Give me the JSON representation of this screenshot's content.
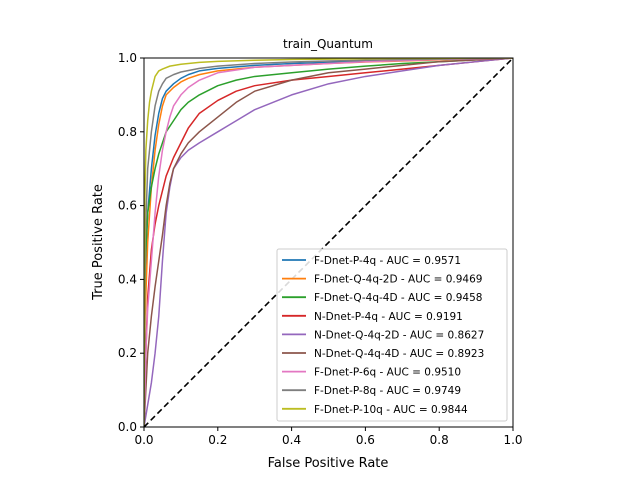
{
  "chart_data": {
    "type": "line",
    "title": "train_Quantum",
    "xlabel": "False Positive Rate",
    "ylabel": "True Positive Rate",
    "xlim": [
      0.0,
      1.0
    ],
    "ylim": [
      0.0,
      1.0
    ],
    "xticks": [
      "0.0",
      "0.2",
      "0.4",
      "0.6",
      "0.8",
      "1.0"
    ],
    "yticks": [
      "0.0",
      "0.2",
      "0.4",
      "0.6",
      "0.8",
      "1.0"
    ],
    "legend_position": "lower-right",
    "grid": false,
    "diagonal": {
      "color": "#000000",
      "style": "dashed",
      "x": [
        0,
        1
      ],
      "y": [
        0,
        1
      ]
    },
    "series": [
      {
        "name": "F-Dnet-P-4q - AUC = 0.9571",
        "color": "#1f77b4",
        "x": [
          0,
          0.003,
          0.01,
          0.02,
          0.03,
          0.04,
          0.05,
          0.06,
          0.08,
          0.1,
          0.12,
          0.15,
          0.2,
          0.3,
          0.4,
          0.5,
          0.6,
          0.7,
          0.8,
          0.9,
          1.0
        ],
        "y": [
          0,
          0.4,
          0.58,
          0.7,
          0.79,
          0.85,
          0.89,
          0.91,
          0.93,
          0.945,
          0.955,
          0.965,
          0.972,
          0.98,
          0.985,
          0.988,
          0.991,
          0.994,
          0.996,
          0.998,
          1.0
        ]
      },
      {
        "name": "F-Dnet-Q-4q-2D - AUC = 0.9469",
        "color": "#ff7f0e",
        "x": [
          0,
          0.003,
          0.01,
          0.02,
          0.03,
          0.04,
          0.05,
          0.06,
          0.08,
          0.1,
          0.12,
          0.15,
          0.2,
          0.3,
          0.4,
          0.5,
          0.6,
          0.7,
          0.8,
          0.9,
          1.0
        ],
        "y": [
          0,
          0.3,
          0.5,
          0.65,
          0.75,
          0.82,
          0.87,
          0.9,
          0.92,
          0.935,
          0.945,
          0.955,
          0.965,
          0.975,
          0.98,
          0.985,
          0.989,
          0.992,
          0.995,
          0.998,
          1.0
        ]
      },
      {
        "name": "F-Dnet-Q-4q-4D - AUC = 0.9458",
        "color": "#2ca02c",
        "x": [
          0,
          0.003,
          0.01,
          0.02,
          0.03,
          0.04,
          0.05,
          0.06,
          0.08,
          0.1,
          0.12,
          0.15,
          0.2,
          0.25,
          0.3,
          0.4,
          0.5,
          0.6,
          0.7,
          0.8,
          0.9,
          1.0
        ],
        "y": [
          0,
          0.45,
          0.58,
          0.65,
          0.7,
          0.74,
          0.77,
          0.8,
          0.83,
          0.86,
          0.88,
          0.9,
          0.925,
          0.94,
          0.95,
          0.96,
          0.97,
          0.978,
          0.985,
          0.99,
          0.995,
          1.0
        ]
      },
      {
        "name": "N-Dnet-P-4q - AUC = 0.9191",
        "color": "#d62728",
        "x": [
          0,
          0.005,
          0.01,
          0.02,
          0.03,
          0.04,
          0.05,
          0.06,
          0.08,
          0.1,
          0.12,
          0.15,
          0.2,
          0.25,
          0.3,
          0.4,
          0.5,
          0.6,
          0.7,
          0.8,
          0.9,
          1.0
        ],
        "y": [
          0,
          0.2,
          0.35,
          0.48,
          0.55,
          0.6,
          0.64,
          0.68,
          0.73,
          0.77,
          0.81,
          0.85,
          0.885,
          0.91,
          0.925,
          0.94,
          0.95,
          0.96,
          0.97,
          0.98,
          0.99,
          1.0
        ]
      },
      {
        "name": "N-Dnet-Q-4q-2D - AUC = 0.8627",
        "color": "#9467bd",
        "x": [
          0,
          0.01,
          0.02,
          0.03,
          0.04,
          0.05,
          0.06,
          0.07,
          0.08,
          0.1,
          0.12,
          0.15,
          0.2,
          0.25,
          0.3,
          0.35,
          0.4,
          0.5,
          0.6,
          0.7,
          0.8,
          0.9,
          1.0
        ],
        "y": [
          0,
          0.06,
          0.12,
          0.2,
          0.3,
          0.45,
          0.58,
          0.65,
          0.7,
          0.73,
          0.75,
          0.77,
          0.8,
          0.83,
          0.86,
          0.88,
          0.9,
          0.93,
          0.95,
          0.965,
          0.98,
          0.99,
          1.0
        ]
      },
      {
        "name": "N-Dnet-Q-4q-4D - AUC = 0.8923",
        "color": "#8c564b",
        "x": [
          0,
          0.005,
          0.01,
          0.02,
          0.03,
          0.04,
          0.05,
          0.06,
          0.07,
          0.08,
          0.1,
          0.12,
          0.15,
          0.2,
          0.25,
          0.3,
          0.4,
          0.5,
          0.6,
          0.7,
          0.8,
          0.9,
          1.0
        ],
        "y": [
          0,
          0.1,
          0.2,
          0.3,
          0.38,
          0.45,
          0.52,
          0.6,
          0.66,
          0.7,
          0.74,
          0.77,
          0.8,
          0.84,
          0.88,
          0.91,
          0.94,
          0.96,
          0.97,
          0.98,
          0.99,
          0.995,
          1.0
        ]
      },
      {
        "name": "F-Dnet-P-6q - AUC = 0.9510",
        "color": "#e377c2",
        "x": [
          0,
          0.005,
          0.01,
          0.02,
          0.03,
          0.04,
          0.05,
          0.06,
          0.07,
          0.08,
          0.1,
          0.12,
          0.15,
          0.2,
          0.3,
          0.4,
          0.5,
          0.6,
          0.7,
          0.8,
          0.9,
          1.0
        ],
        "y": [
          0,
          0.2,
          0.32,
          0.45,
          0.58,
          0.68,
          0.75,
          0.8,
          0.84,
          0.87,
          0.9,
          0.92,
          0.94,
          0.96,
          0.975,
          0.98,
          0.985,
          0.99,
          0.993,
          0.996,
          0.998,
          1.0
        ]
      },
      {
        "name": "F-Dnet-P-8q - AUC = 0.9749",
        "color": "#7f7f7f",
        "x": [
          0,
          0.003,
          0.01,
          0.02,
          0.03,
          0.04,
          0.05,
          0.06,
          0.08,
          0.1,
          0.15,
          0.2,
          0.3,
          0.4,
          0.5,
          0.6,
          0.7,
          0.8,
          0.9,
          1.0
        ],
        "y": [
          0,
          0.5,
          0.7,
          0.8,
          0.87,
          0.91,
          0.93,
          0.945,
          0.955,
          0.962,
          0.972,
          0.978,
          0.985,
          0.989,
          0.992,
          0.994,
          0.996,
          0.997,
          0.999,
          1.0
        ]
      },
      {
        "name": "F-Dnet-P-10q - AUC = 0.9844",
        "color": "#bcbd22",
        "x": [
          0,
          0.002,
          0.005,
          0.01,
          0.015,
          0.02,
          0.025,
          0.03,
          0.04,
          0.05,
          0.07,
          0.1,
          0.15,
          0.2,
          0.3,
          0.4,
          0.5,
          0.6,
          0.7,
          0.8,
          0.9,
          1.0
        ],
        "y": [
          0,
          0.6,
          0.75,
          0.83,
          0.88,
          0.91,
          0.93,
          0.95,
          0.965,
          0.97,
          0.978,
          0.983,
          0.988,
          0.991,
          0.994,
          0.996,
          0.997,
          0.998,
          0.999,
          0.999,
          1.0,
          1.0
        ]
      }
    ]
  }
}
